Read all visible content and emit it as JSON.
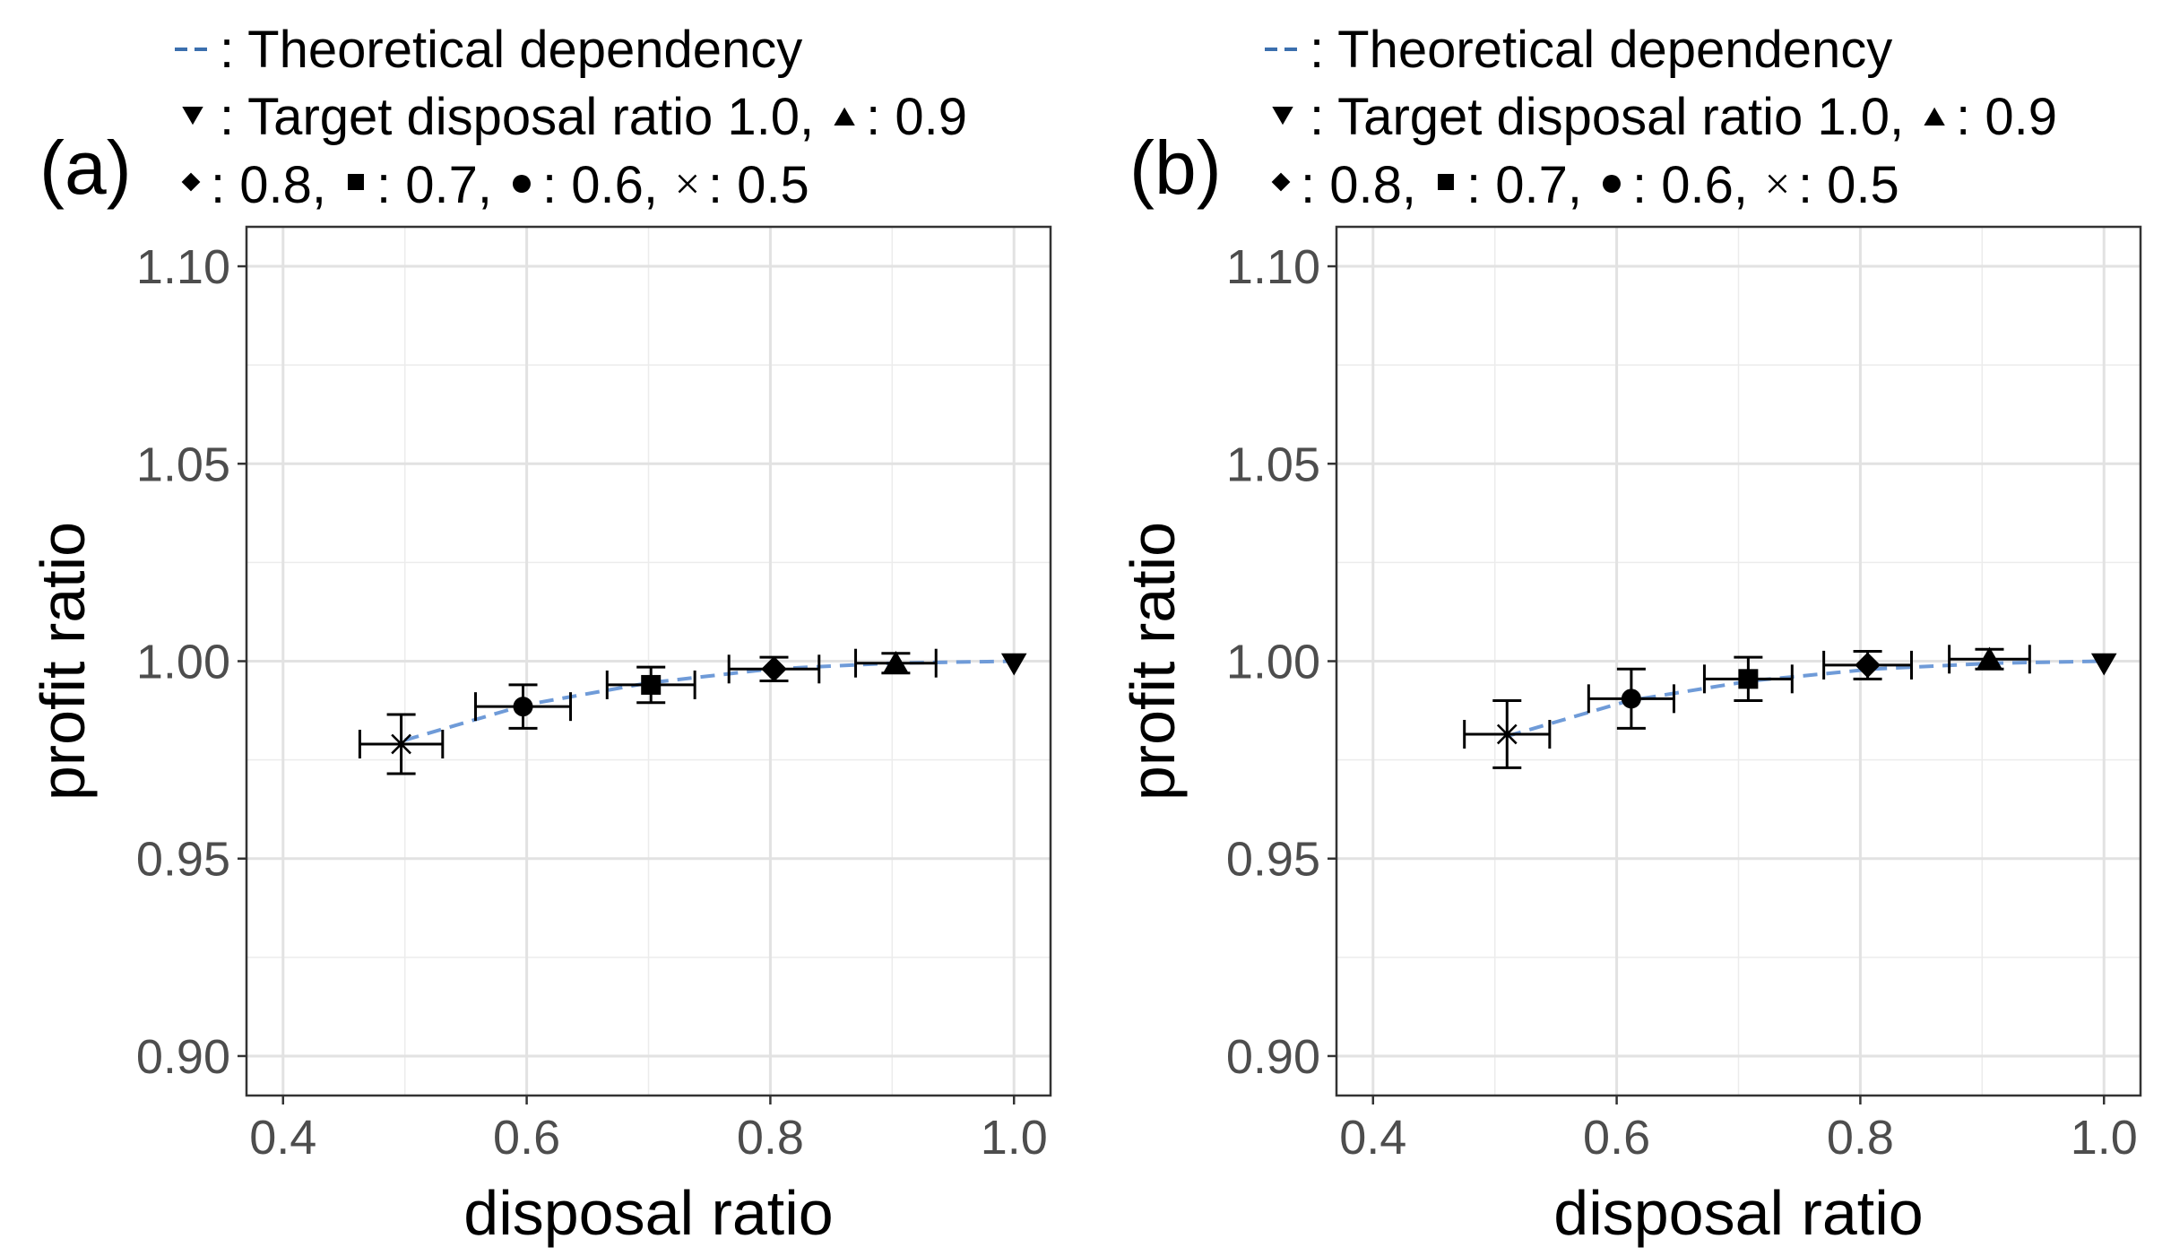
{
  "chart_data": [
    {
      "type": "scatter",
      "panel_label": "(a)",
      "legend": {
        "line1": ": Theoretical dependency",
        "line2_a": ": Target disposal ratio 1.0,",
        "line2_b": ": 0.9",
        "line3_a": ": 0.8,",
        "line3_b": ": 0.7,",
        "line3_c": ": 0.6,",
        "line3_d": ": 0.5"
      },
      "xlabel": "disposal ratio",
      "ylabel": "profit ratio",
      "xlim": [
        0.37,
        1.03
      ],
      "ylim": [
        0.89,
        1.11
      ],
      "xticks": [
        0.4,
        0.6,
        0.8,
        1.0
      ],
      "xtick_labels": [
        "0.4",
        "0.6",
        "0.8",
        "1.0"
      ],
      "yticks": [
        0.9,
        0.95,
        1.0,
        1.05,
        1.1
      ],
      "ytick_labels": [
        "0.90",
        "0.95",
        "1.00",
        "1.05",
        "1.10"
      ],
      "grid": true,
      "theory_line": {
        "name": "Theoretical dependency",
        "color": "#6f9bd8",
        "x": [
          0.5,
          0.6,
          0.7,
          0.8,
          0.9,
          1.0
        ],
        "y": [
          0.98,
          0.989,
          0.9945,
          0.998,
          0.9995,
          1.0
        ]
      },
      "series": [
        {
          "name": "0.5",
          "marker": "cross",
          "x": 0.497,
          "y": 0.979,
          "xerr": 0.034,
          "yerr": 0.0075
        },
        {
          "name": "0.6",
          "marker": "circle",
          "x": 0.597,
          "y": 0.9885,
          "xerr": 0.039,
          "yerr": 0.0055
        },
        {
          "name": "0.7",
          "marker": "square",
          "x": 0.702,
          "y": 0.994,
          "xerr": 0.036,
          "yerr": 0.0045
        },
        {
          "name": "0.8",
          "marker": "diamond",
          "x": 0.803,
          "y": 0.998,
          "xerr": 0.037,
          "yerr": 0.003
        },
        {
          "name": "0.9",
          "marker": "triangle-up",
          "x": 0.903,
          "y": 0.9995,
          "xerr": 0.033,
          "yerr": 0.0025
        },
        {
          "name": "1.0",
          "marker": "triangle-down",
          "x": 1.0,
          "y": 0.9995,
          "xerr": 0,
          "yerr": 0
        }
      ]
    },
    {
      "type": "scatter",
      "panel_label": "(b)",
      "legend": {
        "line1": ": Theoretical dependency",
        "line2_a": ": Target disposal ratio 1.0,",
        "line2_b": ": 0.9",
        "line3_a": ": 0.8,",
        "line3_b": ": 0.7,",
        "line3_c": ": 0.6,",
        "line3_d": ": 0.5"
      },
      "xlabel": "disposal ratio",
      "ylabel": "profit ratio",
      "xlim": [
        0.37,
        1.03
      ],
      "ylim": [
        0.89,
        1.11
      ],
      "xticks": [
        0.4,
        0.6,
        0.8,
        1.0
      ],
      "xtick_labels": [
        "0.4",
        "0.6",
        "0.8",
        "1.0"
      ],
      "yticks": [
        0.9,
        0.95,
        1.0,
        1.05,
        1.1
      ],
      "ytick_labels": [
        "0.90",
        "0.95",
        "1.00",
        "1.05",
        "1.10"
      ],
      "grid": true,
      "theory_line": {
        "name": "Theoretical dependency",
        "color": "#6f9bd8",
        "x": [
          0.51,
          0.61,
          0.71,
          0.81,
          0.91,
          1.0
        ],
        "y": [
          0.981,
          0.99,
          0.995,
          0.998,
          0.9995,
          1.0
        ]
      },
      "series": [
        {
          "name": "0.5",
          "marker": "cross",
          "x": 0.51,
          "y": 0.9815,
          "xerr": 0.035,
          "yerr": 0.0085
        },
        {
          "name": "0.6",
          "marker": "circle",
          "x": 0.612,
          "y": 0.9905,
          "xerr": 0.035,
          "yerr": 0.0075
        },
        {
          "name": "0.7",
          "marker": "square",
          "x": 0.708,
          "y": 0.9955,
          "xerr": 0.036,
          "yerr": 0.0055
        },
        {
          "name": "0.8",
          "marker": "diamond",
          "x": 0.806,
          "y": 0.999,
          "xerr": 0.036,
          "yerr": 0.0035
        },
        {
          "name": "0.9",
          "marker": "triangle-up",
          "x": 0.906,
          "y": 1.0005,
          "xerr": 0.033,
          "yerr": 0.0025
        },
        {
          "name": "1.0",
          "marker": "triangle-down",
          "x": 1.0,
          "y": 0.9995,
          "xerr": 0,
          "yerr": 0
        }
      ]
    }
  ]
}
